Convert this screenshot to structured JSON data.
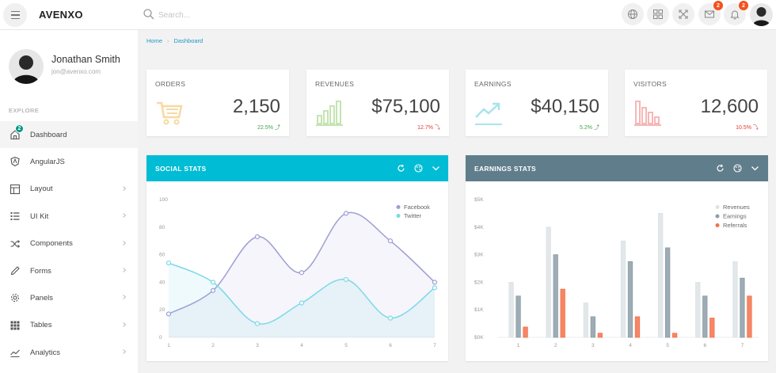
{
  "app": {
    "brand": "AVENXO"
  },
  "search": {
    "placeholder": "Search..."
  },
  "topbar": {
    "icons": [
      "globe-icon",
      "apps-icon",
      "fullscreen-icon",
      "mail-icon",
      "bell-icon"
    ],
    "mail_badge": "2",
    "notification_badge": "2"
  },
  "profile": {
    "name": "Jonathan Smith",
    "email": "jon@avenxo.com"
  },
  "sidebar": {
    "section": "EXPLORE",
    "items": [
      {
        "label": "Dashboard",
        "icon": "home-icon",
        "badge": "2",
        "active": true,
        "chevron": false
      },
      {
        "label": "AngularJS",
        "icon": "shield-icon",
        "chevron": false
      },
      {
        "label": "Layout",
        "icon": "layout-icon",
        "chevron": true
      },
      {
        "label": "UI Kit",
        "icon": "list-icon",
        "chevron": true
      },
      {
        "label": "Components",
        "icon": "shuffle-icon",
        "chevron": true
      },
      {
        "label": "Forms",
        "icon": "pencil-icon",
        "chevron": true
      },
      {
        "label": "Panels",
        "icon": "gear-icon",
        "chevron": true
      },
      {
        "label": "Tables",
        "icon": "grid-icon",
        "chevron": true
      },
      {
        "label": "Analytics",
        "icon": "trend-icon",
        "chevron": true
      }
    ]
  },
  "breadcrumb": {
    "home": "Home",
    "current": "Dashboard"
  },
  "stats": [
    {
      "title": "ORDERS",
      "value": "2,150",
      "change": "22.5%",
      "direction": "up",
      "icon": "cart-icon",
      "color": "#f7d9a1"
    },
    {
      "title": "REVENUES",
      "value": "$75,100",
      "change": "12.7%",
      "direction": "down",
      "icon": "bar-chart-icon",
      "color": "#c5e4b1"
    },
    {
      "title": "EARNINGS",
      "value": "$40,150",
      "change": "5.2%",
      "direction": "up",
      "icon": "trend-up-icon",
      "color": "#a9e3ef"
    },
    {
      "title": "VISITORS",
      "value": "12,600",
      "change": "10.5%",
      "direction": "down",
      "icon": "visitors-chart-icon",
      "color": "#f6b7b7"
    }
  ],
  "panels": {
    "social": {
      "title": "SOCIAL STATS",
      "header_color": "#00bcd4"
    },
    "earnings": {
      "title": "EARNINGS STATS",
      "header_color": "#607d8b"
    }
  },
  "chart_data": [
    {
      "type": "line",
      "title": "",
      "x": [
        1,
        2,
        3,
        4,
        5,
        6,
        7
      ],
      "ylim": [
        0,
        100
      ],
      "yticks": [
        "0",
        "20",
        "40",
        "60",
        "80",
        "100"
      ],
      "legend_position": "top-right",
      "grid": false,
      "series": [
        {
          "name": "Facebook",
          "values": [
            17,
            34,
            73,
            47,
            90,
            70,
            40
          ],
          "color": "#9c9ed3"
        },
        {
          "name": "Twitter",
          "values": [
            54,
            40,
            10,
            25,
            42,
            14,
            36
          ],
          "color": "#7ad9e8"
        }
      ]
    },
    {
      "type": "bar",
      "title": "",
      "categories": [
        "1",
        "2",
        "3",
        "4",
        "5",
        "6",
        "7"
      ],
      "ylim": [
        0,
        5000
      ],
      "yticks": [
        "$0K",
        "$1K",
        "$2K",
        "$3K",
        "$4K",
        "$5K"
      ],
      "legend_position": "top-right",
      "grid": false,
      "series": [
        {
          "name": "Revenues",
          "values": [
            2000,
            4000,
            1250,
            3500,
            4500,
            2000,
            2750
          ],
          "color": "#dde3e6"
        },
        {
          "name": "Earnings",
          "values": [
            1500,
            3000,
            750,
            2750,
            3250,
            1500,
            2150
          ],
          "color": "#8c9ea8"
        },
        {
          "name": "Referrals",
          "values": [
            375,
            1750,
            150,
            750,
            150,
            700,
            1500
          ],
          "color": "#f4714a"
        }
      ]
    }
  ]
}
